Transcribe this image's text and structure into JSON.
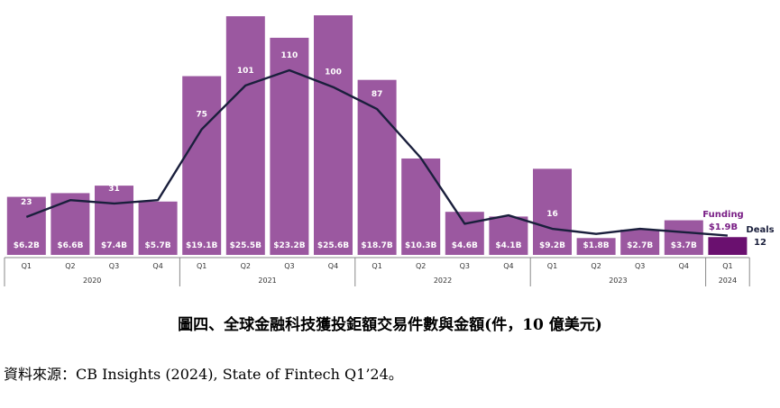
{
  "caption": "圖四、全球金融科技獲投鉅額交易件數與金額(件，10 億美元)",
  "source": "資料來源：CB Insights (2024), State of Fintech Q1’24。",
  "colors": {
    "bar": "#9b58a0",
    "bar_highlight": "#6a106f",
    "line": "#1a1f3c",
    "funding_label": "#7a1f86",
    "deals_label": "#1a1f3c"
  },
  "chart_data": {
    "type": "bar",
    "categories": [
      "Q1",
      "Q2",
      "Q3",
      "Q4",
      "Q1",
      "Q2",
      "Q3",
      "Q4",
      "Q1",
      "Q2",
      "Q3",
      "Q4",
      "Q1",
      "Q2",
      "Q3",
      "Q4",
      "Q1"
    ],
    "years": [
      {
        "label": "2020",
        "start": 0,
        "end": 3
      },
      {
        "label": "2021",
        "start": 4,
        "end": 7
      },
      {
        "label": "2022",
        "start": 8,
        "end": 11
      },
      {
        "label": "2023",
        "start": 12,
        "end": 15
      },
      {
        "label": "2024",
        "start": 16,
        "end": 16
      }
    ],
    "funding": [
      6.2,
      6.6,
      7.4,
      5.7,
      19.1,
      25.5,
      23.2,
      25.6,
      18.7,
      10.3,
      4.6,
      4.1,
      9.2,
      1.8,
      2.7,
      3.7,
      1.9
    ],
    "funding_labels": [
      "$6.2B",
      "$6.6B",
      "$7.4B",
      "$5.7B",
      "$19.1B",
      "$25.5B",
      "$23.2B",
      "$25.6B",
      "$18.7B",
      "$10.3B",
      "$4.6B",
      "$4.1B",
      "$9.2B",
      "$1.8B",
      "$2.7B",
      "$3.7B",
      ""
    ],
    "deals": [
      23,
      33,
      31,
      33,
      75,
      101,
      110,
      100,
      87,
      58,
      19,
      24,
      16,
      13,
      16,
      14,
      12
    ],
    "deal_labels": [
      "23",
      "33",
      "31",
      "33",
      "75",
      "101",
      "110",
      "100",
      "87",
      "58",
      "19",
      "24",
      "16",
      "13",
      "16",
      "14",
      ""
    ],
    "annotation": {
      "funding_title": "Funding",
      "funding_value": "$1.9B",
      "deals_title": "Deals",
      "deals_value": "12"
    },
    "grid": false
  }
}
